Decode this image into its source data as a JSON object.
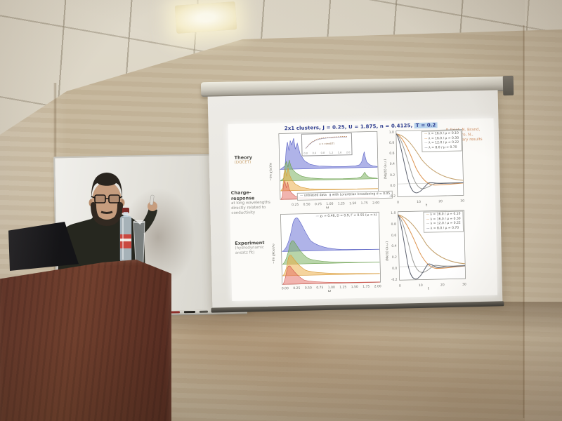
{
  "slide": {
    "title": {
      "prefix": "2x1 clusters,  J = 0.25,  U = 1.875,  n = 0.4125,  ",
      "highlight": "T = 0.2"
    },
    "credits": [
      "P. Brint, N. Brand,",
      "M. Ferrero, N.,",
      "preliminary results"
    ],
    "sections": {
      "theory_title": "Theory",
      "theory_sub": "(DQCET)",
      "charge_title": "Charge-response",
      "charge_sub": "at long wavelengths directly related to conductivity",
      "exp_title": "Experiment",
      "exp_sub": "(hydrodynamic ansatz fit)"
    },
    "plots": {
      "tl": {
        "ylabel": "−Im χ(ω)/ω",
        "xlabel": "ω",
        "x_ticks": [
          "0.25",
          "0.50",
          "0.75",
          "1.00",
          "1.25",
          "1.50",
          "1.75",
          "2.00"
        ],
        "legend": [
          "unbiased data",
          "with Lorentzian broadening σ = 0.05"
        ],
        "inset_label": "a = const(T)",
        "inset_x_ticks": [
          "0.0",
          "0.4",
          "0.8",
          "1.2",
          "1.6",
          "2.0"
        ]
      },
      "tr": {
        "ylabel": "⟨Nq(t)⟩ (a.u.)",
        "xlabel": "t",
        "x_ticks": [
          "0",
          "10",
          "20",
          "30"
        ],
        "y_ticks": [
          "1.0",
          "0.8",
          "0.6",
          "0.4",
          "0.2",
          "0.0",
          "-0.2"
        ],
        "legend": [
          "λ = 16.0 / μ = 0.10",
          "λ = 16.0 / μ = 0.30",
          "λ = 12.0 / μ = 0.22",
          "λ = 8.0 / μ = 0.70"
        ]
      },
      "bl": {
        "ylabel": "−Im χk(ω)/ω",
        "xlabel": "ω",
        "x_ticks": [
          "0.00",
          "0.25",
          "0.50",
          "0.75",
          "1.00",
          "1.25",
          "1.50",
          "1.75",
          "2.00"
        ],
        "legend": [
          "χ₀ = 0.48,  D = 0.9,  Γ = 0.55  (ω = k)"
        ]
      },
      "br": {
        "ylabel": "⟨Nk(t)⟩ (a.u.)",
        "xlabel": "t",
        "x_ticks": [
          "0",
          "10",
          "20",
          "30"
        ],
        "y_ticks": [
          "1.0",
          "0.8",
          "0.6",
          "0.4",
          "0.2",
          "0.0",
          "-0.2"
        ],
        "legend": [
          "λ = 16.0 / μ = 0.10",
          "λ = 16.0 / μ = 0.30",
          "λ = 12.0 / μ = 0.22",
          "λ = 8.0 / μ = 0.70"
        ]
      }
    }
  },
  "colors": {
    "title_text": "#2f3e8f",
    "title_highlight_bg": "#b9d4ee",
    "credits_text": "#cf8f63",
    "label_text": "#4a4a46",
    "theory_sub_text": "#c79f6b",
    "muted_text": "#8d8d88",
    "axis": "#8a8a85",
    "ridge_blue_fill": "rgba(110,116,214,0.55)",
    "ridge_blue_stroke": "#5a62c4",
    "ridge_green_fill": "rgba(125,178,98,0.55)",
    "ridge_green_stroke": "#6ca050",
    "ridge_orange_fill": "rgba(235,170,62,0.5)",
    "ridge_orange_stroke": "#d79a3a",
    "ridge_red_fill": "rgba(228,105,96,0.5)",
    "ridge_red_stroke": "#cd5a50",
    "line_tan": "#c3a06b",
    "line_orange": "#dd9450",
    "line_gray": "#9b9b97",
    "line_dark": "#5e6370"
  }
}
